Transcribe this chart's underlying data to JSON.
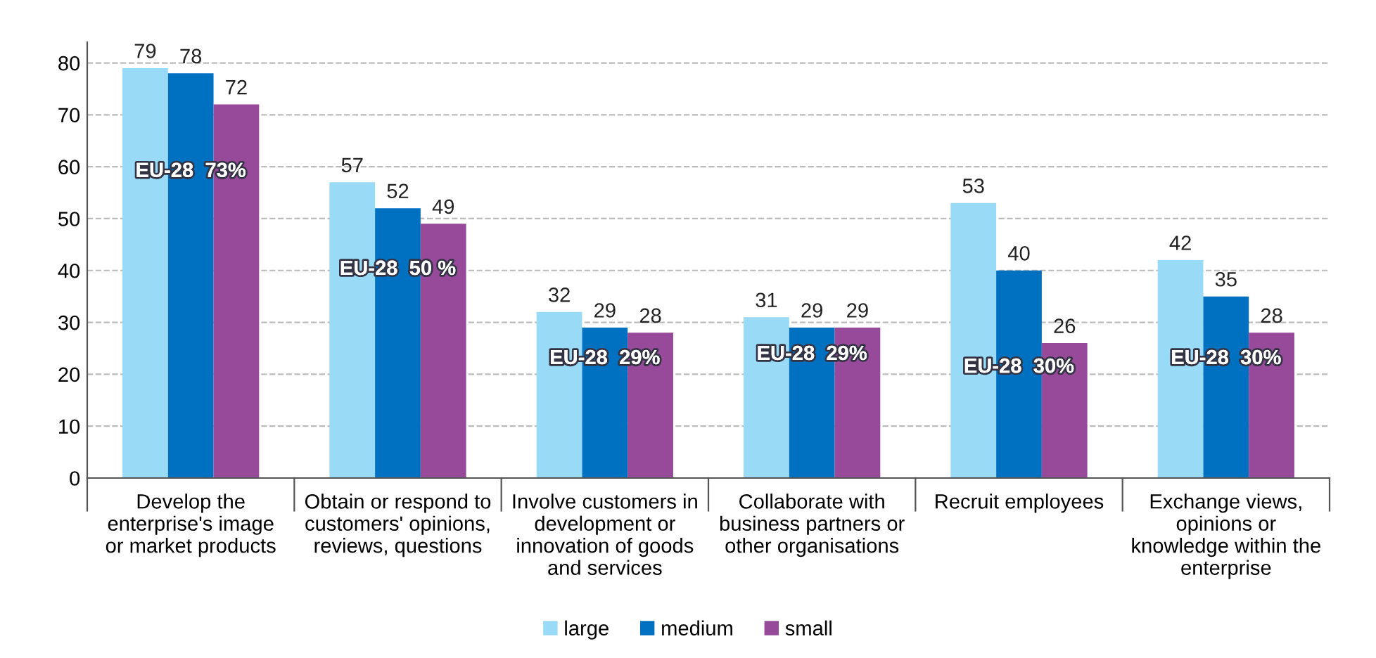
{
  "chart_data": {
    "type": "bar",
    "categories": [
      "Develop the\nenterprise's image\nor market products",
      "Obtain or respond to\ncustomers' opinions,\nreviews, questions",
      "Involve customers in\ndevelopment or\ninnovation of goods\nand services",
      "Collaborate with\nbusiness partners or\nother organisations",
      "Recruit employees",
      "Exchange views,\nopinions or\nknowledge within the\nenterprise"
    ],
    "series": [
      {
        "name": "large",
        "color": "#99daf6",
        "values": [
          79,
          57,
          32,
          31,
          53,
          42
        ]
      },
      {
        "name": "medium",
        "color": "#0070c0",
        "values": [
          78,
          52,
          29,
          29,
          40,
          35
        ]
      },
      {
        "name": "small",
        "color": "#974a9a",
        "values": [
          72,
          49,
          28,
          29,
          26,
          28
        ]
      }
    ],
    "annotations": [
      "EU-28  73%",
      "EU-28  50 %",
      "EU-28  29%",
      "EU-28  29%",
      "EU-28  30%",
      "EU-28  30%"
    ],
    "ylim": [
      0,
      84
    ],
    "yticks": [
      0,
      10,
      20,
      30,
      40,
      50,
      60,
      70,
      80
    ],
    "grid": "y",
    "legend": "bottom",
    "data_labels": true
  }
}
